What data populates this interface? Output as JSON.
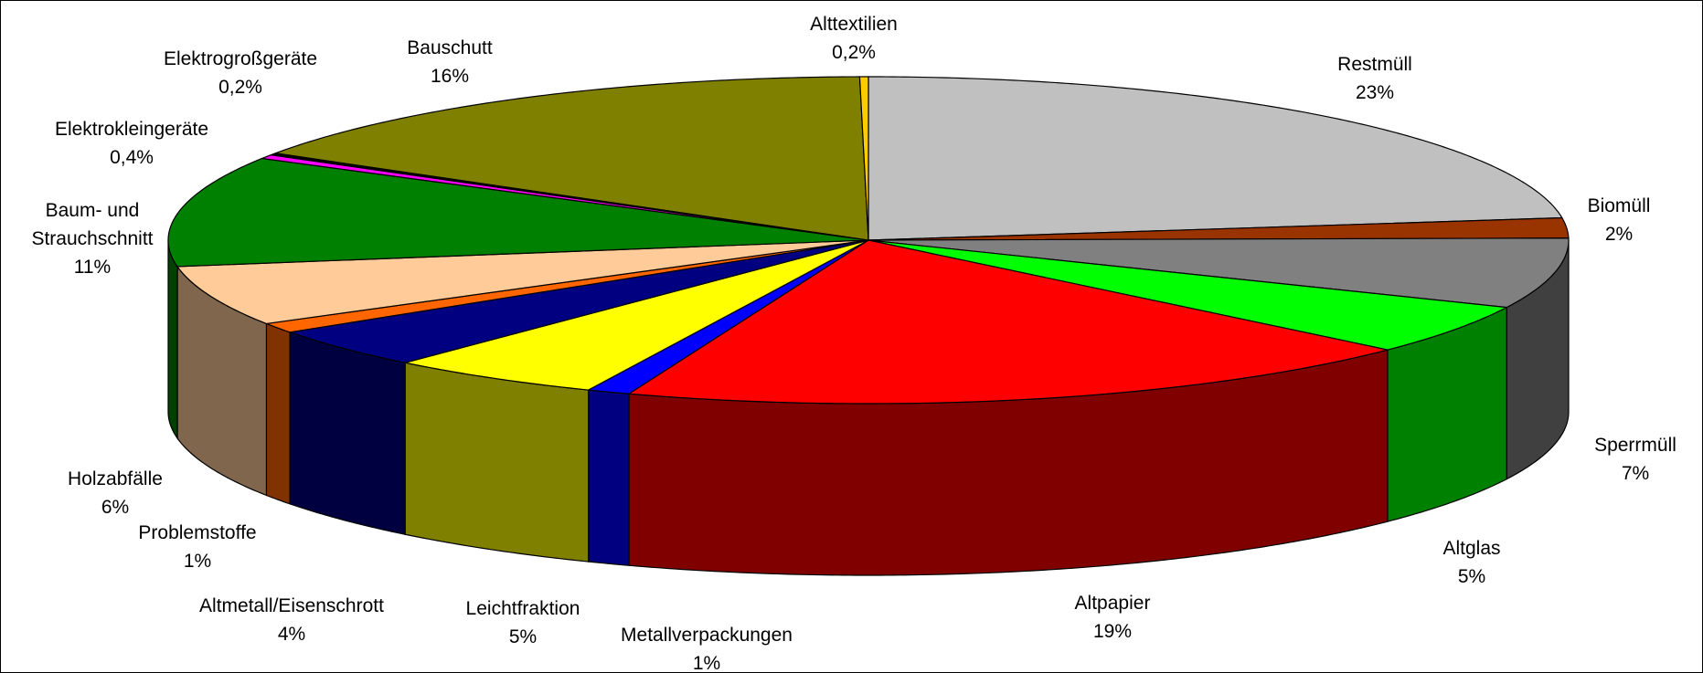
{
  "chart_data": {
    "type": "pie3d",
    "categories": [
      "Restmüll",
      "Biomüll",
      "Sperrmüll",
      "Altglas",
      "Altpapier",
      "Metallverpackungen",
      "Leichtfraktion",
      "Altmetall/Eisenschrott",
      "Problemstoffe",
      "Holzabfälle",
      "Baum- und Strauchschnitt",
      "Elektrokleingeräte",
      "Elektrogroßgeräte",
      "Bauschutt",
      "Alttextilien"
    ],
    "values": [
      23,
      2,
      7,
      5,
      19,
      1,
      5,
      4,
      1,
      6,
      11,
      0.4,
      0.2,
      16,
      0.2
    ],
    "value_labels": [
      "23%",
      "2%",
      "7%",
      "5%",
      "19%",
      "1%",
      "5%",
      "4%",
      "1%",
      "6%",
      "11%",
      "0,4%",
      "0,2%",
      "16%",
      "0,2%"
    ],
    "colors": [
      "#c0c0c0",
      "#993300",
      "#808080",
      "#00ff00",
      "#ff0000",
      "#0000ff",
      "#ffff00",
      "#000080",
      "#ff6600",
      "#ffcc99",
      "#008000",
      "#ff00ff",
      "#000000",
      "#808000",
      "#ffcc00"
    ]
  }
}
